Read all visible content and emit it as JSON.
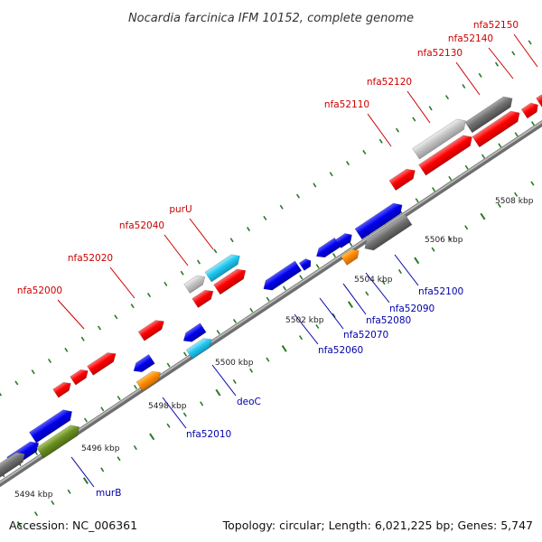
{
  "title": "Nocardia farcinica IFM 10152, complete genome",
  "footer": {
    "accession": "Accession: NC_006361",
    "summary": "Topology: circular; Length: 6,021,225 bp; Genes: 5,747"
  },
  "colors": {
    "forward_label": "#cc0000",
    "reverse_label": "#0000aa",
    "backbone": "#888888",
    "tick": "#2a7a2a",
    "red": "#ff0000",
    "blue": "#0000ee",
    "cyan": "#22c8f0",
    "orange": "#ff8c00",
    "gray": "#bbbbbb",
    "darkgray": "#707070",
    "olive": "#6b8e23"
  },
  "scale": {
    "unit": "kbp",
    "labels": [
      "5494 kbp",
      "5496 kbp",
      "5498 kbp",
      "5500 kbp",
      "5502 kbp",
      "5504 kbp",
      "5506 kbp",
      "5508 kbp"
    ]
  },
  "forward_labels": [
    "nfa52000",
    "nfa52020",
    "nfa52040",
    "purU",
    "nfa52110",
    "nfa52120",
    "nfa52130",
    "nfa52140",
    "nfa52150"
  ],
  "reverse_labels": [
    "murB",
    "nfa52010",
    "deoC",
    "nfa52060",
    "nfa52070",
    "nfa52080",
    "nfa52090",
    "nfa52100"
  ]
}
